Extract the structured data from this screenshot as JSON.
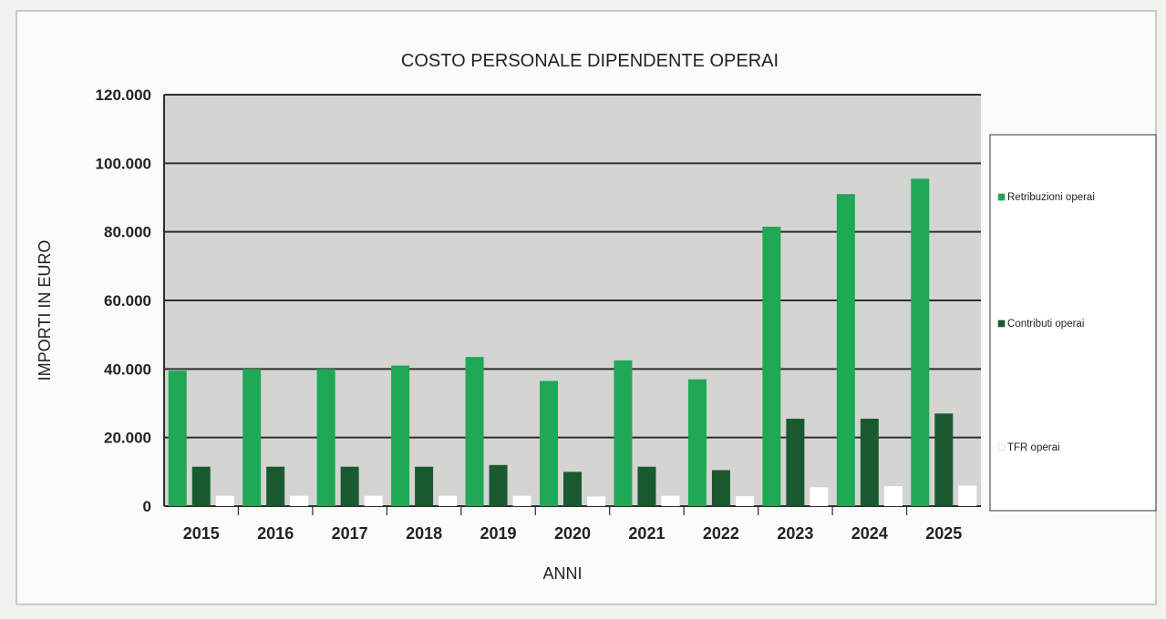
{
  "chart_data": {
    "type": "bar",
    "title": "COSTO PERSONALE DIPENDENTE OPERAI",
    "xlabel": "ANNI",
    "ylabel": "IMPORTI IN EURO",
    "ylim": [
      0,
      120000
    ],
    "yticks": [
      0,
      20000,
      40000,
      60000,
      80000,
      100000,
      120000
    ],
    "ytick_labels": [
      "0",
      "20.000",
      "40.000",
      "60.000",
      "80.000",
      "100.000",
      "120.000"
    ],
    "categories": [
      "2015",
      "2016",
      "2017",
      "2018",
      "2019",
      "2020",
      "2021",
      "2022",
      "2023",
      "2024",
      "2025"
    ],
    "series": [
      {
        "name": "Retribuzioni operai",
        "color": "#1fa855",
        "values": [
          39500,
          40000,
          40000,
          41000,
          43500,
          36500,
          42500,
          37000,
          81500,
          91000,
          95500
        ]
      },
      {
        "name": "Contributi operai",
        "color": "#1a5a30",
        "values": [
          11500,
          11500,
          11500,
          11500,
          12000,
          10000,
          11500,
          10500,
          25500,
          25500,
          27000
        ]
      },
      {
        "name": "TFR operai",
        "color": "#ffffff",
        "values": [
          3000,
          3000,
          3000,
          3000,
          3000,
          2800,
          3000,
          2900,
          5500,
          5800,
          6000
        ]
      }
    ],
    "grid": true,
    "legend": "right"
  }
}
